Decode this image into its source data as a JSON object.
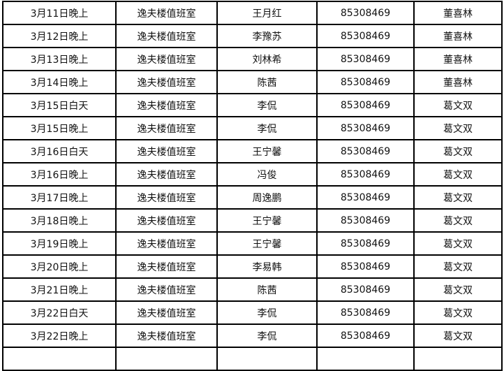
{
  "rows": [
    [
      "3月11日晚上",
      "逸夫楼值班室",
      "王月红",
      "85308469",
      "董喜林"
    ],
    [
      "3月12日晚上",
      "逸夫楼值班室",
      "李豫苏",
      "85308469",
      "董喜林"
    ],
    [
      "3月13日晚上",
      "逸夫楼值班室",
      "刘林希",
      "85308469",
      "董喜林"
    ],
    [
      "3月14日晚上",
      "逸夫楼值班室",
      "陈茜",
      "85308469",
      "董喜林"
    ],
    [
      "3月15日白天",
      "逸夫楼值班室",
      "李侃",
      "85308469",
      "葛文双"
    ],
    [
      "3月15日晚上",
      "逸夫楼值班室",
      "李侃",
      "85308469",
      "葛文双"
    ],
    [
      "3月16日白天",
      "逸夫楼值班室",
      "王宁馨",
      "85308469",
      "葛文双"
    ],
    [
      "3月16日晚上",
      "逸夫楼值班室",
      "冯俊",
      "85308469",
      "葛文双"
    ],
    [
      "3月17日晚上",
      "逸夫楼值班室",
      "周逸鹏",
      "85308469",
      "葛文双"
    ],
    [
      "3月18日晚上",
      "逸夫楼值班室",
      "王宁馨",
      "85308469",
      "葛文双"
    ],
    [
      "3月19日晚上",
      "逸夫楼值班室",
      "王宁馨",
      "85308469",
      "葛文双"
    ],
    [
      "3月20日晚上",
      "逸夫楼值班室",
      "李易韩",
      "85308469",
      "葛文双"
    ],
    [
      "3月21日晚上",
      "逸夫楼值班室",
      "陈茜",
      "85308469",
      "葛文双"
    ],
    [
      "3月22日白天",
      "逸夫楼值班室",
      "李侃",
      "85308469",
      "葛文双"
    ],
    [
      "3月22日晚上",
      "逸夫楼值班室",
      "李侃",
      "85308469",
      "葛文双"
    ]
  ]
}
